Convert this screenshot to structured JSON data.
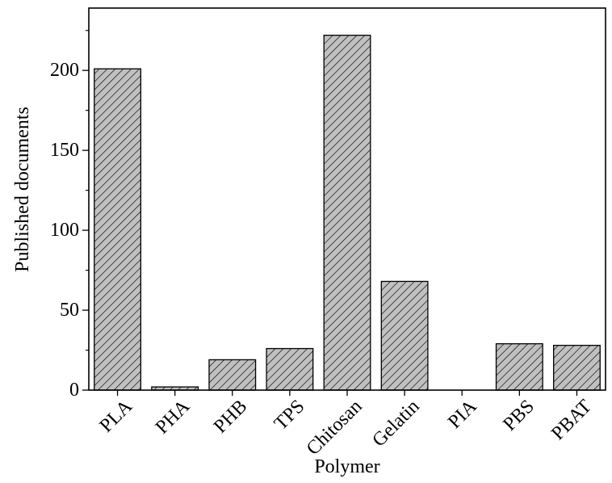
{
  "chart_data": {
    "type": "bar",
    "categories": [
      "PLA",
      "PHA",
      "PHB",
      "TPS",
      "Chitosan",
      "Gelatin",
      "PIA",
      "PBS",
      "PBAT"
    ],
    "values": [
      201,
      2,
      19,
      26,
      222,
      68,
      0,
      29,
      28
    ],
    "xlabel": "Polymer",
    "ylabel": "Published documents",
    "ylim": [
      0,
      239
    ],
    "yticks": [
      0,
      50,
      100,
      150,
      200
    ],
    "yticks_minor": [
      25,
      75,
      125,
      175,
      225
    ],
    "grid": false,
    "legend": "none",
    "bar_fill": "#c0c0c0",
    "bar_hatch": "diagonal",
    "bar_stroke": "#000000"
  }
}
